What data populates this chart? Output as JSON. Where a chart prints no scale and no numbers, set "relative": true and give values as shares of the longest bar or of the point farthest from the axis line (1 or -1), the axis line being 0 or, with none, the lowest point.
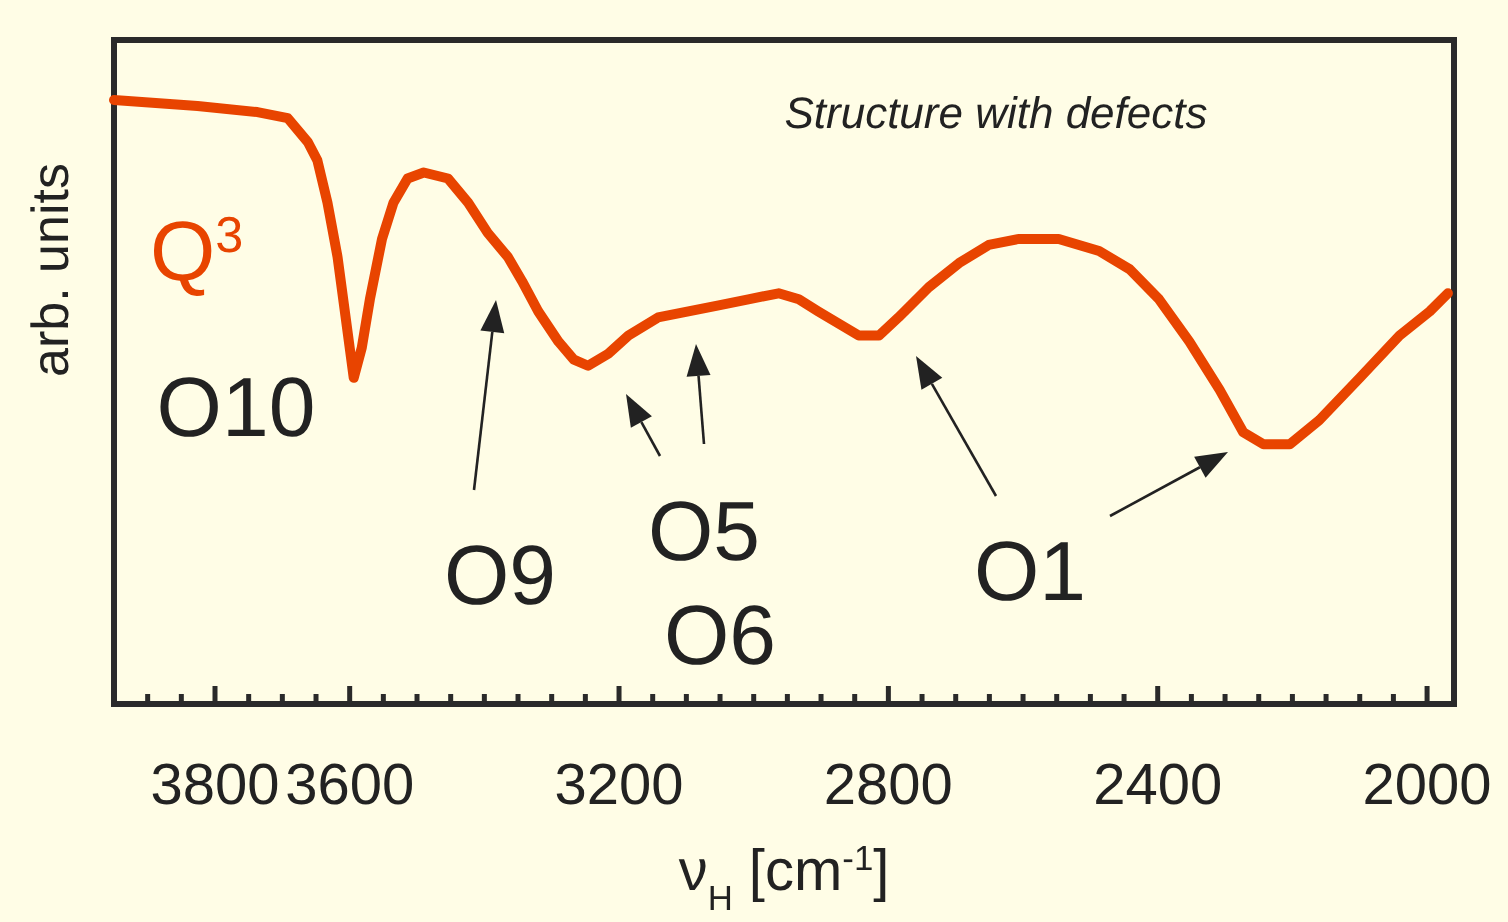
{
  "chart_data": {
    "type": "line",
    "relative": true,
    "xlabel": "ν$_{H}$ [cm$^{-1}$]",
    "ylabel": "arb. units",
    "legend": false,
    "grid": false,
    "xlim": [
      3950,
      1960
    ],
    "xticks": [
      {
        "value": 3950,
        "label": null
      },
      {
        "value": 3900,
        "label": null
      },
      {
        "value": 3850,
        "label": null
      },
      3800,
      {
        "value": 3750,
        "label": null
      },
      {
        "value": 3700,
        "label": null
      },
      {
        "value": 3650,
        "label": null
      },
      3600,
      {
        "value": 3550,
        "label": null
      },
      {
        "value": 3500,
        "label": null
      },
      {
        "value": 3450,
        "label": null
      },
      {
        "value": 3400,
        "label": null
      },
      {
        "value": 3350,
        "label": null
      },
      {
        "value": 3300,
        "label": null
      },
      {
        "value": 3250,
        "label": null
      },
      3200,
      {
        "value": 3150,
        "label": null
      },
      {
        "value": 3100,
        "label": null
      },
      {
        "value": 3050,
        "label": null
      },
      {
        "value": 3000,
        "label": null
      },
      {
        "value": 2950,
        "label": null
      },
      {
        "value": 2900,
        "label": null
      },
      {
        "value": 2850,
        "label": null
      },
      2800,
      {
        "value": 2750,
        "label": null
      },
      {
        "value": 2700,
        "label": null
      },
      {
        "value": 2650,
        "label": null
      },
      {
        "value": 2600,
        "label": null
      },
      {
        "value": 2550,
        "label": null
      },
      {
        "value": 2500,
        "label": null
      },
      {
        "value": 2450,
        "label": null
      },
      2400,
      {
        "value": 2350,
        "label": null
      },
      {
        "value": 2300,
        "label": null
      },
      {
        "value": 2250,
        "label": null
      },
      {
        "value": 2200,
        "label": null
      },
      {
        "value": 2150,
        "label": null
      },
      {
        "value": 2100,
        "label": null
      },
      {
        "value": 2050,
        "label": null
      },
      2000
    ],
    "series": [
      {
        "name": "Q$^{3}$",
        "color": "#e84400",
        "x": [
          3950,
          3826,
          3737,
          3692,
          3662,
          3648,
          3633,
          3618,
          3606,
          3594,
          3582,
          3570,
          3552,
          3535,
          3514,
          3490,
          3454,
          3424,
          3395,
          3365,
          3344,
          3320,
          3290,
          3267,
          3246,
          3216,
          3186,
          3142,
          3097,
          3052,
          3008,
          2963,
          2933,
          2904,
          2874,
          2844,
          2814,
          2785,
          2740,
          2695,
          2651,
          2606,
          2547,
          2487,
          2442,
          2398,
          2353,
          2308,
          2273,
          2243,
          2204,
          2160,
          2100,
          2041,
          1996,
          1969
        ],
        "values": [
          1.0,
          0.99,
          0.98,
          0.97,
          0.93,
          0.9,
          0.83,
          0.74,
          0.64,
          0.54,
          0.59,
          0.67,
          0.77,
          0.83,
          0.87,
          0.88,
          0.87,
          0.83,
          0.78,
          0.74,
          0.7,
          0.65,
          0.6,
          0.57,
          0.56,
          0.58,
          0.61,
          0.64,
          0.65,
          0.66,
          0.67,
          0.68,
          0.67,
          0.65,
          0.63,
          0.61,
          0.61,
          0.64,
          0.69,
          0.73,
          0.76,
          0.77,
          0.77,
          0.75,
          0.72,
          0.67,
          0.6,
          0.52,
          0.45,
          0.43,
          0.43,
          0.47,
          0.54,
          0.61,
          0.65,
          0.68
        ]
      }
    ],
    "annotations": [
      "Structure with defects",
      "O10",
      "O9",
      "O5",
      "O6",
      "O1"
    ]
  }
}
